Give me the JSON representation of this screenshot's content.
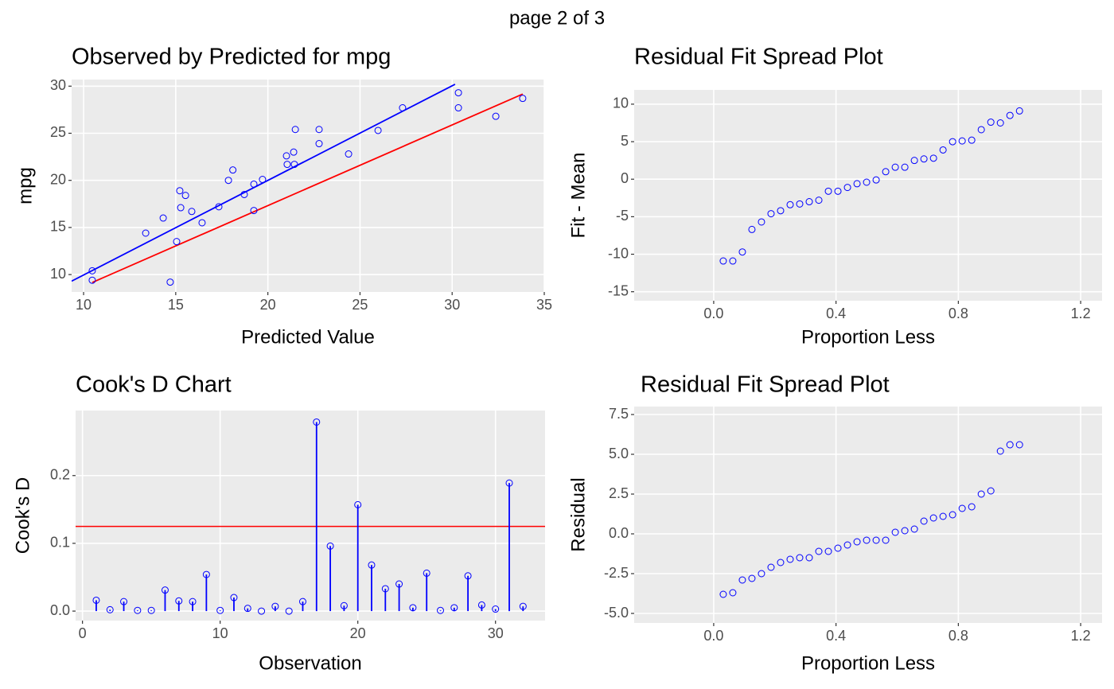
{
  "title": "page 2 of 3",
  "chart_data": [
    {
      "type": "scatter",
      "title": "Observed by Predicted for mpg",
      "x_label": "Predicted Value",
      "y_label": "mpg",
      "x": [
        10.47,
        10.47,
        13.37,
        14.32,
        14.7,
        15.05,
        15.22,
        15.27,
        15.53,
        15.87,
        16.43,
        17.34,
        17.86,
        18.1,
        18.72,
        19.24,
        19.24,
        19.71,
        21.01,
        21.05,
        21.4,
        21.44,
        21.49,
        22.78,
        22.78,
        24.38,
        25.98,
        27.31,
        30.34,
        30.34,
        32.37,
        33.83
      ],
      "values": [
        10.4,
        9.4,
        14.4,
        16.0,
        9.2,
        13.5,
        18.9,
        17.1,
        18.4,
        16.7,
        15.5,
        17.2,
        20.0,
        21.1,
        18.5,
        19.6,
        16.8,
        20.1,
        22.6,
        21.7,
        23.0,
        21.7,
        25.4,
        25.4,
        23.9,
        22.8,
        25.3,
        27.7,
        29.3,
        27.7,
        26.8,
        28.7
      ],
      "color": "blue",
      "lines": [
        {
          "color": "blue",
          "x": [
            9.35,
            30.16
          ],
          "y": [
            9.3,
            30.2
          ]
        },
        {
          "color": "red",
          "x": [
            10.47,
            33.83
          ],
          "y": [
            9.16,
            29.16
          ]
        }
      ],
      "xlim": [
        9.35,
        35.0
      ],
      "ylim": [
        8.15,
        30.7
      ],
      "xticks": [
        10,
        15,
        20,
        25,
        30,
        35
      ],
      "yticks": [
        10,
        15,
        20,
        25,
        30
      ],
      "grid": true
    },
    {
      "type": "scatter",
      "title": "Residual Fit Spread Plot",
      "x_label": "Proportion Less",
      "y_label": "Fit - Mean",
      "x": [
        0.03125,
        0.0625,
        0.09375,
        0.125,
        0.15625,
        0.1875,
        0.21875,
        0.25,
        0.28125,
        0.3125,
        0.34375,
        0.375,
        0.40625,
        0.4375,
        0.46875,
        0.5,
        0.53125,
        0.5625,
        0.59375,
        0.625,
        0.65625,
        0.6875,
        0.71875,
        0.75,
        0.78125,
        0.8125,
        0.84375,
        0.875,
        0.90625,
        0.9375,
        0.96875,
        1.0
      ],
      "values": [
        -10.9,
        -10.9,
        -9.7,
        -6.7,
        -5.7,
        -4.6,
        -4.2,
        -3.4,
        -3.3,
        -3.0,
        -2.8,
        -1.6,
        -1.6,
        -1.1,
        -0.6,
        -0.4,
        -0.1,
        1.0,
        1.6,
        1.6,
        2.5,
        2.7,
        2.8,
        3.9,
        5.0,
        5.1,
        5.2,
        6.6,
        7.6,
        7.5,
        8.5,
        9.1
      ],
      "color": "blue",
      "xlim": [
        -0.26,
        1.27
      ],
      "ylim": [
        -16.2,
        11.9
      ],
      "xticks": [
        {
          "value": 0,
          "label": "0.0"
        },
        0.4,
        0.8,
        1.2
      ],
      "yticks": [
        -15,
        -10,
        -5,
        0,
        5,
        10
      ],
      "grid": true
    },
    {
      "type": "stem",
      "title": "Cook's D Chart",
      "x_label": "Observation",
      "y_label": "Cook's D",
      "x": [
        1,
        2,
        3,
        4,
        5,
        6,
        7,
        8,
        9,
        10,
        11,
        12,
        13,
        14,
        15,
        16,
        17,
        18,
        19,
        20,
        21,
        22,
        23,
        24,
        25,
        26,
        27,
        28,
        29,
        30,
        31,
        32
      ],
      "values": [
        0.016,
        0.002,
        0.014,
        0.001,
        0.001,
        0.031,
        0.015,
        0.014,
        0.054,
        0.001,
        0.02,
        0.004,
        0.0,
        0.007,
        0.0,
        0.014,
        0.279,
        0.096,
        0.008,
        0.157,
        0.068,
        0.033,
        0.04,
        0.005,
        0.056,
        0.001,
        0.005,
        0.052,
        0.009,
        0.003,
        0.189,
        0.007
      ],
      "color": "blue",
      "threshold": 0.125,
      "threshold_color": "red",
      "xlim": [
        -0.5,
        33.6
      ],
      "ylim": [
        -0.014,
        0.296
      ],
      "xticks": [
        0,
        10,
        20,
        30
      ],
      "yticks": [
        {
          "value": 0,
          "label": "0.0"
        },
        0.1,
        0.2
      ],
      "grid": true
    },
    {
      "type": "scatter",
      "title": "Residual Fit Spread Plot",
      "x_label": "Proportion Less",
      "y_label": "Residual",
      "x": [
        0.03125,
        0.0625,
        0.09375,
        0.125,
        0.15625,
        0.1875,
        0.21875,
        0.25,
        0.28125,
        0.3125,
        0.34375,
        0.375,
        0.40625,
        0.4375,
        0.46875,
        0.5,
        0.53125,
        0.5625,
        0.59375,
        0.625,
        0.65625,
        0.6875,
        0.71875,
        0.75,
        0.78125,
        0.8125,
        0.84375,
        0.875,
        0.90625,
        0.9375,
        0.96875,
        1.0
      ],
      "values": [
        -3.8,
        -3.7,
        -2.9,
        -2.8,
        -2.5,
        -2.1,
        -1.8,
        -1.6,
        -1.5,
        -1.5,
        -1.1,
        -1.1,
        -0.9,
        -0.7,
        -0.5,
        -0.4,
        -0.4,
        -0.4,
        0.1,
        0.2,
        0.3,
        0.8,
        1.0,
        1.1,
        1.2,
        1.6,
        1.7,
        2.5,
        2.7,
        5.2,
        5.6,
        5.6
      ],
      "color": "blue",
      "xlim": [
        -0.26,
        1.27
      ],
      "ylim": [
        -5.6,
        8.0
      ],
      "xticks": [
        {
          "value": 0,
          "label": "0.0"
        },
        0.4,
        0.8,
        1.2
      ],
      "yticks": [
        {
          "value": -5,
          "label": "-5.0"
        },
        -2.5,
        {
          "value": 0,
          "label": "0.0"
        },
        2.5,
        {
          "value": 5,
          "label": "5.0"
        },
        7.5
      ],
      "grid": true
    }
  ]
}
